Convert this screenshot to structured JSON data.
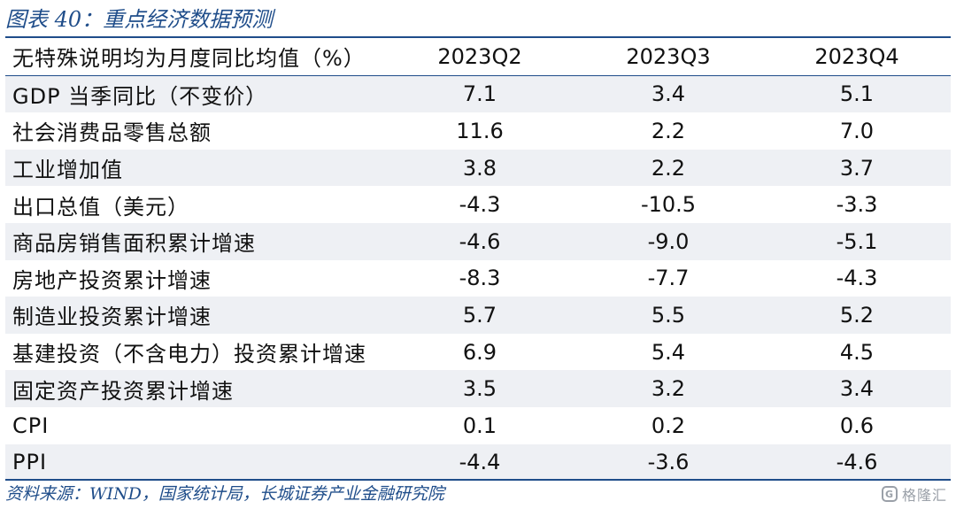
{
  "title": "图表 40：重点经济数据预测",
  "table": {
    "header": {
      "label": "无特殊说明均为月度同比均值（%）",
      "columns": [
        "2023Q2",
        "2023Q3",
        "2023Q4"
      ]
    },
    "rows": [
      {
        "label": "GDP 当季同比（不变价）",
        "values": [
          "7.1",
          "3.4",
          "5.1"
        ]
      },
      {
        "label": "社会消费品零售总额",
        "values": [
          "11.6",
          "2.2",
          "7.0"
        ]
      },
      {
        "label": "工业增加值",
        "values": [
          "3.8",
          "2.2",
          "3.7"
        ]
      },
      {
        "label": "出口总值（美元）",
        "values": [
          "-4.3",
          "-10.5",
          "-3.3"
        ]
      },
      {
        "label": "商品房销售面积累计增速",
        "values": [
          "-4.6",
          "-9.0",
          "-5.1"
        ]
      },
      {
        "label": "房地产投资累计增速",
        "values": [
          "-8.3",
          "-7.7",
          "-4.3"
        ]
      },
      {
        "label": "制造业投资累计增速",
        "values": [
          "5.7",
          "5.5",
          "5.2"
        ]
      },
      {
        "label": "基建投资（不含电力）投资累计增速",
        "values": [
          "6.9",
          "5.4",
          "4.5"
        ]
      },
      {
        "label": "固定资产投资累计增速",
        "values": [
          "3.5",
          "3.2",
          "3.4"
        ]
      },
      {
        "label": "CPI",
        "values": [
          "0.1",
          "0.2",
          "0.6"
        ]
      },
      {
        "label": "PPI",
        "values": [
          "-4.4",
          "-3.6",
          "-4.6"
        ]
      }
    ]
  },
  "source": "资料来源：WIND，国家统计局，长城证券产业金融研究院",
  "watermark": {
    "icon": "gelonghui-logo-icon",
    "text": "格隆汇"
  }
}
